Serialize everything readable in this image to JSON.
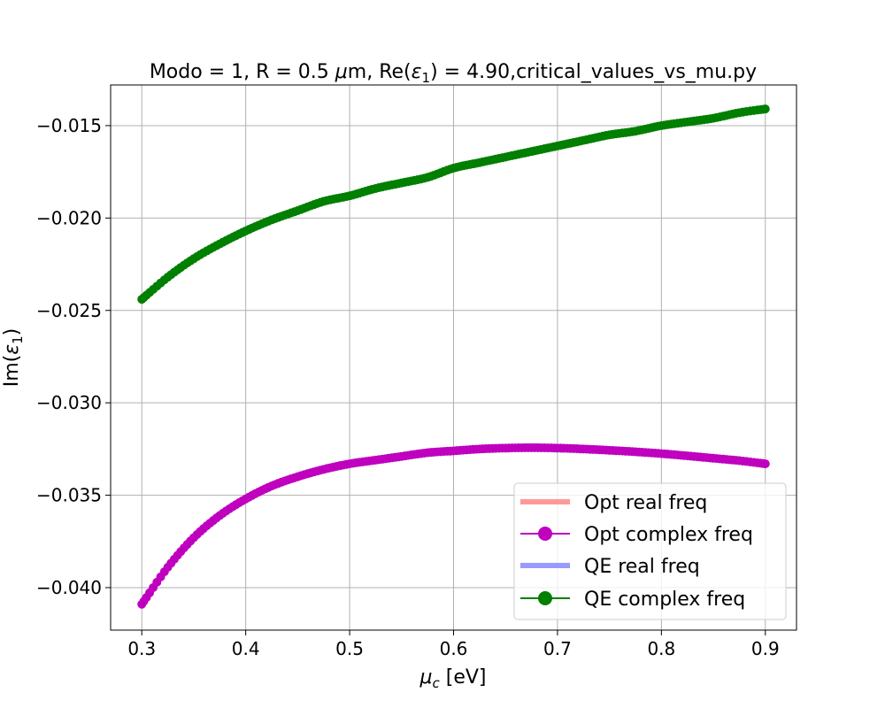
{
  "chart_data": {
    "type": "line",
    "title": "Modo = 1, R = 0.5 μm, Re(ε₁) = 4.90,critical_values_vs_mu.py",
    "title_parts": {
      "prefix": "Modo = 1, R = 0.5 ",
      "mu": "μ",
      "unit": "m, Re(",
      "eps": "ε",
      "sub": "1",
      "suffix": ") = 4.90,critical_values_vs_mu.py"
    },
    "xlabel": "μ_c [eV]",
    "xlabel_parts": {
      "mu": "μ",
      "sub": "c",
      "rest": " [eV]"
    },
    "ylabel": "Im(ε₁)",
    "ylabel_parts": {
      "pre": "Im(",
      "eps": "ε",
      "sub": "1",
      "post": ")"
    },
    "xlim": [
      0.27,
      0.93
    ],
    "ylim": [
      -0.0423,
      -0.0128
    ],
    "xticks": [
      0.3,
      0.4,
      0.5,
      0.6,
      0.7,
      0.8,
      0.9
    ],
    "xtick_labels": [
      "0.3",
      "0.4",
      "0.5",
      "0.6",
      "0.7",
      "0.8",
      "0.9"
    ],
    "yticks": [
      -0.04,
      -0.035,
      -0.03,
      -0.025,
      -0.02,
      -0.015
    ],
    "ytick_labels": [
      "−0.040",
      "−0.035",
      "−0.030",
      "−0.025",
      "−0.020",
      "−0.015"
    ],
    "grid": true,
    "legend_position": "lower-right",
    "series": [
      {
        "name": "Opt real freq",
        "style": "line",
        "color": "#ff9999",
        "x": [],
        "y": []
      },
      {
        "name": "Opt complex freq",
        "style": "line-marker",
        "color": "#bf00bf",
        "x": [
          0.3,
          0.325,
          0.35,
          0.375,
          0.4,
          0.425,
          0.45,
          0.475,
          0.5,
          0.525,
          0.55,
          0.575,
          0.6,
          0.625,
          0.65,
          0.675,
          0.7,
          0.725,
          0.75,
          0.775,
          0.8,
          0.825,
          0.85,
          0.875,
          0.9
        ],
        "y": [
          -0.0409,
          -0.0389,
          -0.0373,
          -0.0361,
          -0.0352,
          -0.0345,
          -0.034,
          -0.0336,
          -0.0333,
          -0.0331,
          -0.0329,
          -0.0327,
          -0.0326,
          -0.0325,
          -0.03245,
          -0.03243,
          -0.03245,
          -0.0325,
          -0.03257,
          -0.03265,
          -0.03275,
          -0.03287,
          -0.033,
          -0.03313,
          -0.0333
        ]
      },
      {
        "name": "QE real freq",
        "style": "line",
        "color": "#9999ff",
        "x": [],
        "y": []
      },
      {
        "name": "QE complex freq",
        "style": "line-marker",
        "color": "#007f00",
        "x": [
          0.3,
          0.325,
          0.35,
          0.375,
          0.4,
          0.425,
          0.45,
          0.475,
          0.5,
          0.525,
          0.55,
          0.575,
          0.6,
          0.625,
          0.65,
          0.675,
          0.7,
          0.725,
          0.75,
          0.775,
          0.8,
          0.825,
          0.85,
          0.875,
          0.9
        ],
        "y": [
          -0.0244,
          -0.0232,
          -0.0222,
          -0.0214,
          -0.0207,
          -0.0201,
          -0.0196,
          -0.0191,
          -0.0188,
          -0.0184,
          -0.0181,
          -0.0178,
          -0.0173,
          -0.017,
          -0.0167,
          -0.0164,
          -0.0161,
          -0.0158,
          -0.0155,
          -0.0153,
          -0.015,
          -0.0148,
          -0.0146,
          -0.0143,
          -0.0141
        ]
      }
    ]
  }
}
